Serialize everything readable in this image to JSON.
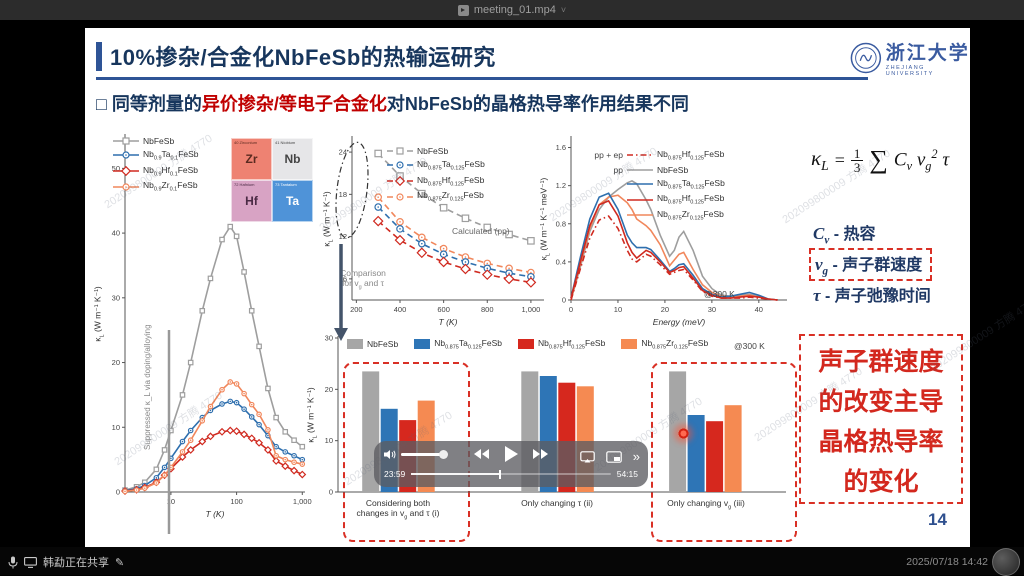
{
  "window": {
    "title": "meeting_01.mp4",
    "chevron": "˅"
  },
  "status_bar": {
    "sharing_text": "韩勐正在共享",
    "pencil": "✎",
    "timestamp": "2025/07/18 14:42"
  },
  "player": {
    "elapsed": "23:59",
    "duration": "54:15",
    "progress_pct": 44,
    "volume_pct": 92,
    "more_label": "»"
  },
  "colors": {
    "navy": "#17365d",
    "accent_blue": "#2e5496",
    "red_accent": "#c00000",
    "box_red": "#d93025",
    "gray_series": "#9e9e9e",
    "blue_series": "#2e6fae",
    "red_series": "#d02a20",
    "orange_series": "#f1875c",
    "bar_gray": "#a6a6a6",
    "bar_blue": "#2e75b6",
    "bar_red": "#d6281e",
    "bar_orange": "#f58a52"
  },
  "slide": {
    "title": "10%掺杂/合金化NbFeSb的热输运研究",
    "bullet_prefix": "□ 同等剂量的",
    "bullet_red": "异价掺杂/等电子合金化",
    "bullet_suffix": "对NbFeSb的晶格热导率作用结果不同",
    "page_number": "14",
    "logo_text": "浙江大学",
    "logo_subtext": "ZHEJIANG UNIVERSITY",
    "watermark": "202099800009 方腾 4770",
    "formula": {
      "lhs": "κ_{L}",
      "eq": "=",
      "num": "1",
      "den": "3",
      "sum": "∑",
      "rhs": "C_{v} v_{g}^{2} τ"
    },
    "definitions": [
      {
        "symbol": "C_{v}",
        "text": "- 热容"
      },
      {
        "symbol": "v_{g}",
        "text": "- 声子群速度"
      },
      {
        "symbol": "τ",
        "text": "- 声子弛豫时间"
      }
    ],
    "conclusion_lines": [
      "声子群速度",
      "的改变主导",
      "晶格热导率",
      "的变化"
    ]
  },
  "periodic_table": [
    {
      "num": "40",
      "name": "Zirconium",
      "sym": "Zr",
      "bg": "#ee8272",
      "fg": "#5a2a20"
    },
    {
      "num": "41",
      "name": "Niobium",
      "sym": "Nb",
      "bg": "#e6e6e8",
      "fg": "#444444"
    },
    {
      "num": "72",
      "name": "Hafnium",
      "sym": "Hf",
      "bg": "#d8a3c4",
      "fg": "#4a2a44"
    },
    {
      "num": "73",
      "name": "Tantalum",
      "sym": "Ta",
      "bg": "#4f93d8",
      "fg": "#ffffff"
    }
  ],
  "chart_data": [
    {
      "id": "left",
      "type": "line",
      "xlog": true,
      "xlabel": "T (K)",
      "ylabel": "κ_{L} (W m⁻¹ K⁻¹)",
      "xlim": [
        2,
        1100
      ],
      "ylim": [
        0,
        55
      ],
      "xticks": [
        10,
        100,
        1000
      ],
      "xtick_labels": [
        "10",
        "100",
        "1,000"
      ],
      "yticks": [
        0,
        10,
        20,
        30,
        40,
        50
      ],
      "annotation": "Suppressed κ_L via doping/alloying",
      "legend": [
        {
          "label": "NbFeSb",
          "marker": "square",
          "color": "#9e9e9e"
        },
        {
          "label": "Nb_{0.9}Ta_{0.1}FeSb",
          "marker": "circle",
          "color": "#2e6fae"
        },
        {
          "label": "Nb_{0.9}Hf_{0.1}FeSb",
          "marker": "diamond",
          "color": "#d02a20"
        },
        {
          "label": "Nb_{0.9}Zr_{0.1}FeSb",
          "marker": "circle",
          "color": "#f1875c"
        }
      ],
      "series": [
        {
          "name": "NbFeSb",
          "color": "#9e9e9e",
          "marker": "square",
          "x": [
            2,
            3,
            4,
            6,
            8,
            10,
            15,
            20,
            30,
            40,
            60,
            80,
            100,
            130,
            170,
            220,
            300,
            400,
            550,
            750,
            1000
          ],
          "y": [
            0.3,
            0.8,
            1.5,
            3.5,
            6.5,
            9.5,
            15,
            20,
            28,
            33,
            39,
            41,
            39.5,
            34,
            28,
            22.5,
            16,
            11.5,
            9.3,
            8,
            7
          ]
        },
        {
          "name": "Nb0.9Ta0.1FeSb",
          "color": "#2e6fae",
          "marker": "circle",
          "x": [
            2,
            3,
            4,
            6,
            8,
            10,
            15,
            20,
            30,
            40,
            60,
            80,
            100,
            130,
            170,
            220,
            300,
            400,
            550,
            750,
            1000
          ],
          "y": [
            0.2,
            0.5,
            1.0,
            2.2,
            3.8,
            5.2,
            7.8,
            9.5,
            11.5,
            12.6,
            13.6,
            14,
            13.8,
            12.8,
            11.6,
            10.4,
            8.7,
            7,
            6.2,
            5.6,
            5
          ]
        },
        {
          "name": "Nb0.9Hf0.1FeSb",
          "color": "#d02a20",
          "marker": "diamond",
          "x": [
            2,
            3,
            4,
            6,
            8,
            10,
            15,
            20,
            30,
            40,
            60,
            80,
            100,
            130,
            170,
            220,
            300,
            400,
            550,
            750,
            1000
          ],
          "y": [
            0.15,
            0.35,
            0.7,
            1.5,
            2.6,
            3.6,
            5.4,
            6.5,
            7.8,
            8.6,
            9.3,
            9.5,
            9.4,
            8.9,
            8.3,
            7.6,
            6.5,
            4.8,
            4,
            3.3,
            2.7
          ]
        },
        {
          "name": "Nb0.9Zr0.1FeSb",
          "color": "#f1875c",
          "marker": "circle",
          "x": [
            2,
            3,
            4,
            6,
            8,
            10,
            15,
            20,
            30,
            40,
            60,
            80,
            100,
            130,
            170,
            220,
            300,
            400,
            550,
            750,
            1000
          ],
          "y": [
            0.1,
            0.3,
            0.6,
            1.4,
            2.6,
            3.8,
            6.2,
            8,
            11,
            13.2,
            15.8,
            17,
            16.7,
            15.2,
            13.5,
            12,
            9.6,
            5.6,
            5,
            4.6,
            4.3
          ]
        }
      ]
    },
    {
      "id": "mid",
      "type": "line",
      "xlabel": "T (K)",
      "ylabel": "κ_{L} (W m⁻¹ K⁻¹)",
      "xlim": [
        180,
        1060
      ],
      "ylim": [
        3,
        26
      ],
      "xticks": [
        200,
        400,
        600,
        800,
        1000
      ],
      "xtick_labels": [
        "200",
        "400",
        "600",
        "800",
        "1,000"
      ],
      "yticks": [
        6,
        12,
        18,
        24
      ],
      "note": "Calculated (pp)",
      "annotation": "Comparison\nfor v_{g} and τ",
      "legend": [
        {
          "label": "NbFeSb",
          "marker": "square",
          "color": "#9e9e9e",
          "dash": "6 4"
        },
        {
          "label": "Nb_{0.875}Ta_{0.125}FeSb",
          "marker": "circle",
          "color": "#2e6fae",
          "dash": "6 4"
        },
        {
          "label": "Nb_{0.875}Hf_{0.125}FeSb",
          "marker": "diamond",
          "color": "#d02a20",
          "dash": "6 4"
        },
        {
          "label": "Nb_{0.875}Zr_{0.125}FeSb",
          "marker": "circle",
          "color": "#f1875c",
          "dash": "6 4"
        }
      ],
      "series": [
        {
          "name": "NbFeSb",
          "color": "#9e9e9e",
          "marker": "square",
          "dash": "6 4",
          "x": [
            300,
            400,
            500,
            600,
            700,
            800,
            900,
            1000
          ],
          "y": [
            23.8,
            20.6,
            18.1,
            16.1,
            14.6,
            13.3,
            12.3,
            11.4
          ]
        },
        {
          "name": "Nb0.875Zr0.125FeSb",
          "color": "#f1875c",
          "marker": "circle",
          "dash": "6 4",
          "x": [
            300,
            400,
            500,
            600,
            700,
            800,
            900,
            1000
          ],
          "y": [
            17.6,
            14.1,
            11.9,
            10.3,
            9.1,
            8.2,
            7.5,
            6.9
          ]
        },
        {
          "name": "Nb0.875Ta0.125FeSb",
          "color": "#2e6fae",
          "marker": "circle",
          "dash": "6 4",
          "x": [
            300,
            400,
            500,
            600,
            700,
            800,
            900,
            1000
          ],
          "y": [
            16.2,
            13.1,
            11.0,
            9.5,
            8.4,
            7.5,
            6.8,
            6.3
          ]
        },
        {
          "name": "Nb0.875Hf0.125FeSb",
          "color": "#d02a20",
          "marker": "diamond",
          "dash": "6 4",
          "x": [
            300,
            400,
            500,
            600,
            700,
            800,
            900,
            1000
          ],
          "y": [
            14.2,
            11.5,
            9.7,
            8.4,
            7.4,
            6.6,
            6.0,
            5.5
          ]
        }
      ]
    },
    {
      "id": "right",
      "type": "line",
      "xlabel": "Energy (meV)",
      "ylabel": "κ_{L} (W m⁻¹ K⁻¹ meV⁻¹)",
      "xlim": [
        0,
        46
      ],
      "ylim": [
        0,
        1.7
      ],
      "xticks": [
        0,
        10,
        20,
        30,
        40
      ],
      "xtick_labels": [
        "0",
        "10",
        "20",
        "30",
        "40"
      ],
      "yticks": [
        0,
        0.4,
        0.8,
        1.2,
        1.6
      ],
      "note": "@300 K",
      "legend": [
        {
          "prefix": "pp + ep",
          "label": "Nb_{0.875}Hf_{0.125}FeSb",
          "color": "#d02a20",
          "dash": "6 3 1.5 3"
        },
        {
          "prefix": "pp",
          "label": "NbFeSb",
          "color": "#9e9e9e"
        },
        {
          "prefix": "",
          "label": "Nb_{0.875}Ta_{0.125}FeSb",
          "color": "#2e6fae"
        },
        {
          "prefix": "",
          "label": "Nb_{0.875}Hf_{0.125}FeSb",
          "color": "#d02a20"
        },
        {
          "prefix": "",
          "label": "Nb_{0.875}Zr_{0.125}FeSb",
          "color": "#f1875c"
        }
      ],
      "series": [
        {
          "name": "pp NbFeSb",
          "color": "#9e9e9e",
          "x": [
            0,
            2,
            4,
            6,
            8,
            10,
            12,
            13,
            14,
            16,
            17,
            19,
            21,
            22,
            23,
            24,
            26,
            28,
            30,
            32,
            34,
            36,
            38,
            40,
            42,
            44
          ],
          "y": [
            0,
            0.35,
            0.72,
            0.95,
            1.08,
            1.16,
            1.23,
            1.25,
            1.22,
            1.05,
            0.95,
            0.68,
            0.46,
            0.52,
            0.66,
            0.72,
            0.52,
            0.25,
            0.12,
            0.05,
            0.04,
            0.05,
            0.06,
            0.04,
            0.01,
            0
          ]
        },
        {
          "name": "Nb0.875Zr0.125FeSb",
          "color": "#f1875c",
          "x": [
            0,
            2,
            4,
            6,
            8,
            10,
            12,
            13,
            14,
            16,
            17,
            19,
            21,
            22,
            23,
            24,
            26,
            28,
            30,
            32,
            34,
            36,
            38,
            40,
            42,
            44
          ],
          "y": [
            0,
            0.38,
            0.75,
            1.0,
            1.08,
            1.1,
            1.02,
            0.95,
            0.85,
            0.78,
            0.73,
            0.58,
            0.36,
            0.42,
            0.48,
            0.5,
            0.32,
            0.16,
            0.08,
            0.04,
            0.03,
            0.04,
            0.05,
            0.03,
            0.01,
            0
          ]
        },
        {
          "name": "Nb0.875Ta0.125FeSb",
          "color": "#2e6fae",
          "x": [
            0,
            2,
            4,
            6,
            8,
            10,
            12,
            13,
            14,
            16,
            17,
            19,
            21,
            22,
            23,
            24,
            26,
            28,
            30,
            32,
            34,
            36,
            38,
            40,
            42,
            44
          ],
          "y": [
            0.02,
            0.45,
            0.85,
            1.08,
            1.12,
            0.95,
            0.68,
            0.6,
            0.55,
            0.55,
            0.53,
            0.42,
            0.3,
            0.33,
            0.37,
            0.38,
            0.26,
            0.12,
            0.06,
            0.03,
            0.04,
            0.06,
            0.08,
            0.05,
            0.01,
            0
          ]
        },
        {
          "name": "Nb0.875Hf0.125FeSb",
          "color": "#d02a20",
          "x": [
            0,
            2,
            4,
            6,
            8,
            10,
            12,
            13,
            14,
            16,
            17,
            19,
            21,
            22,
            23,
            24,
            26,
            28,
            30,
            32,
            34,
            36,
            38,
            40,
            42,
            44
          ],
          "y": [
            0.02,
            0.4,
            0.78,
            1.0,
            1.04,
            0.88,
            0.6,
            0.5,
            0.44,
            0.52,
            0.5,
            0.4,
            0.29,
            0.31,
            0.34,
            0.35,
            0.23,
            0.1,
            0.05,
            0.02,
            0.02,
            0.03,
            0.04,
            0.03,
            0.01,
            0
          ]
        },
        {
          "name": "pp+ep Nb0.875Hf0.125FeSb",
          "color": "#d02a20",
          "dash": "6 3 1.5 3",
          "x": [
            0,
            2,
            4,
            6,
            8,
            10,
            12,
            13,
            14,
            16,
            17,
            19,
            21,
            22,
            23,
            24,
            26,
            28,
            30,
            32,
            34,
            36,
            38,
            40,
            42,
            44
          ],
          "y": [
            0,
            0.33,
            0.65,
            0.84,
            0.88,
            0.75,
            0.52,
            0.43,
            0.4,
            0.48,
            0.46,
            0.37,
            0.27,
            0.29,
            0.31,
            0.32,
            0.21,
            0.09,
            0.04,
            0.02,
            0.02,
            0.02,
            0.03,
            0.02,
            0.01,
            0
          ]
        }
      ]
    },
    {
      "id": "bars",
      "type": "grouped_bar",
      "ylabel": "κ_{L} (W m⁻¹ K⁻¹)",
      "ylim": [
        0,
        30
      ],
      "yticks": [
        0,
        10,
        20,
        30
      ],
      "note": "@300 K",
      "group_labels": [
        "Considering both\nchanges in v_{g} and τ (i)",
        "Only changing τ (ii)",
        "Only changing v_{g} (iii)"
      ],
      "series": [
        {
          "name": "NbFeSb",
          "color": "#a6a6a6",
          "values": [
            23.5,
            23.5,
            23.5
          ]
        },
        {
          "name": "Nb_{0.875}Ta_{0.125}FeSb",
          "color": "#2e75b6",
          "values": [
            16.2,
            22.6,
            15.0
          ]
        },
        {
          "name": "Nb_{0.875}Hf_{0.125}FeSb",
          "color": "#d6281e",
          "values": [
            14.0,
            21.3,
            13.8
          ]
        },
        {
          "name": "Nb_{0.875}Zr_{0.125}FeSb",
          "color": "#f58a52",
          "values": [
            17.8,
            20.6,
            16.9
          ]
        }
      ]
    }
  ]
}
